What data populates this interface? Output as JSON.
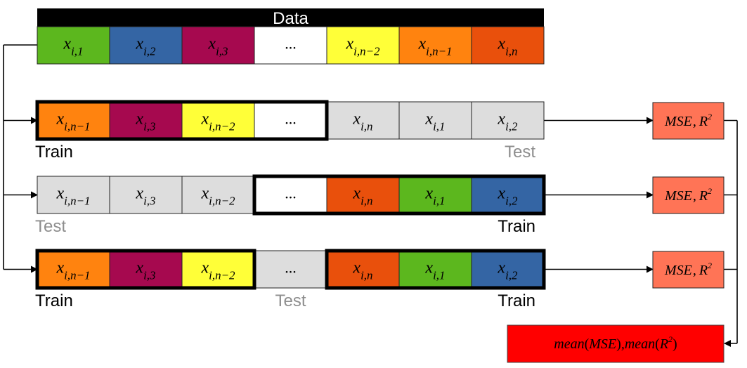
{
  "colors": {
    "green": "#5cb71e",
    "blue": "#3465a4",
    "maroon": "#a6094f",
    "white": "#ffffff",
    "yellow": "#ffff38",
    "orange": "#ff830f",
    "red_orange": "#e9500c",
    "test_gray": "#dddddd",
    "metric_salmon": "#ff7456",
    "mean_red": "#ff0000",
    "header_black": "#000000",
    "test_label_gray": "#8e8e8e"
  },
  "data_row": {
    "header": "Data",
    "cells": [
      {
        "sub": "i,1",
        "color": "green"
      },
      {
        "sub": "i,2",
        "color": "blue"
      },
      {
        "sub": "i,3",
        "color": "maroon"
      },
      {
        "text": "...",
        "color": "white"
      },
      {
        "sub": "i,n−2",
        "color": "yellow"
      },
      {
        "sub": "i,n−1",
        "color": "orange"
      },
      {
        "sub": "i,n",
        "color": "red_orange"
      }
    ]
  },
  "folds": [
    {
      "cells": [
        {
          "sub": "i,n−1",
          "color": "orange"
        },
        {
          "sub": "i,3",
          "color": "maroon"
        },
        {
          "sub": "i,n−2",
          "color": "yellow"
        },
        {
          "text": "...",
          "color": "white"
        },
        {
          "sub": "i,n",
          "color": "test_gray"
        },
        {
          "sub": "i,1",
          "color": "test_gray"
        },
        {
          "sub": "i,2",
          "color": "test_gray"
        }
      ],
      "train_ranges": [
        [
          0,
          3
        ]
      ],
      "labels": [
        {
          "text": "Train",
          "role": "train",
          "align": "left",
          "cell": 0
        },
        {
          "text": "Test",
          "role": "test",
          "align": "right",
          "cell": 6
        }
      ],
      "metric": {
        "base": "MSE",
        "sep": ",",
        "var": "R",
        "exp": "2"
      }
    },
    {
      "cells": [
        {
          "sub": "i,n−1",
          "color": "test_gray"
        },
        {
          "sub": "i,3",
          "color": "test_gray"
        },
        {
          "sub": "i,n−2",
          "color": "test_gray"
        },
        {
          "text": "...",
          "color": "white"
        },
        {
          "sub": "i,n",
          "color": "red_orange"
        },
        {
          "sub": "i,1",
          "color": "green"
        },
        {
          "sub": "i,2",
          "color": "blue"
        }
      ],
      "train_ranges": [
        [
          3,
          6
        ]
      ],
      "labels": [
        {
          "text": "Test",
          "role": "test",
          "align": "left",
          "cell": 0
        },
        {
          "text": "Train",
          "role": "train",
          "align": "right",
          "cell": 6
        }
      ],
      "metric": {
        "base": "MSE",
        "sep": ",",
        "var": "R",
        "exp": "2"
      }
    },
    {
      "cells": [
        {
          "sub": "i,n−1",
          "color": "orange"
        },
        {
          "sub": "i,3",
          "color": "maroon"
        },
        {
          "sub": "i,n−2",
          "color": "yellow"
        },
        {
          "text": "...",
          "color": "test_gray"
        },
        {
          "sub": "i,n",
          "color": "red_orange"
        },
        {
          "sub": "i,1",
          "color": "green"
        },
        {
          "sub": "i,2",
          "color": "blue"
        }
      ],
      "train_ranges": [
        [
          0,
          2
        ],
        [
          4,
          6
        ]
      ],
      "labels": [
        {
          "text": "Train",
          "role": "train",
          "align": "left",
          "cell": 0
        },
        {
          "text": "Test",
          "role": "test",
          "align": "center",
          "cell": 3
        },
        {
          "text": "Train",
          "role": "train",
          "align": "right",
          "cell": 6
        }
      ],
      "metric": {
        "base": "MSE",
        "sep": ",",
        "var": "R",
        "exp": "2"
      }
    }
  ],
  "final": {
    "func": "mean",
    "base": "MSE",
    "sep": ",",
    "var": "R",
    "exp": "2"
  },
  "var_symbol": "x"
}
